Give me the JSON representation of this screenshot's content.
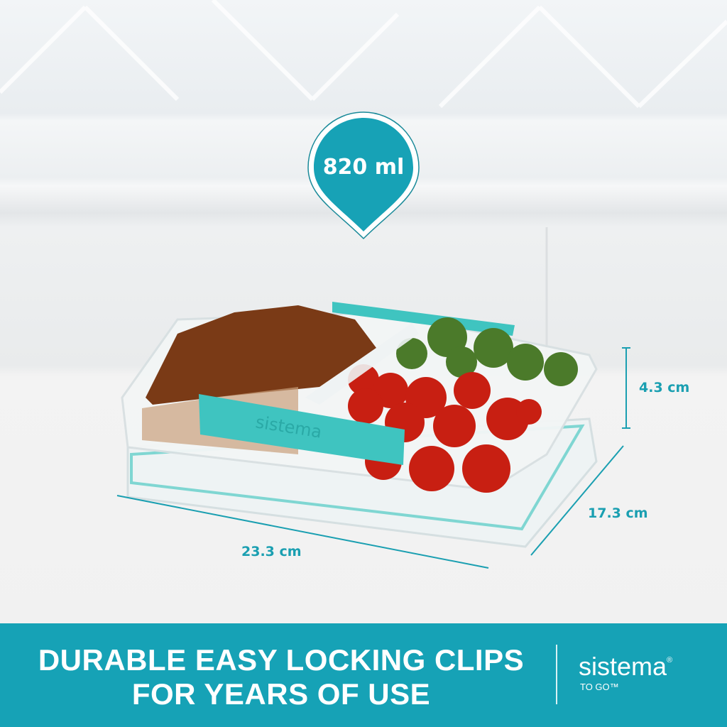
{
  "capacity_badge": {
    "label": "820 ml"
  },
  "dimensions": {
    "height": "4.3 cm",
    "depth": "17.3 cm",
    "width": "23.3 cm"
  },
  "product": {
    "clip_text": "sistema"
  },
  "banner": {
    "headline_line1": "DURABLE EASY LOCKING CLIPS",
    "headline_line2": "FOR YEARS OF USE",
    "brand": "sistema",
    "brand_mark": "®",
    "tagline": "TO GO™"
  },
  "colors": {
    "accent": "#16a2b6",
    "clip": "#3fc4c0",
    "background": "#f1f1f1"
  }
}
